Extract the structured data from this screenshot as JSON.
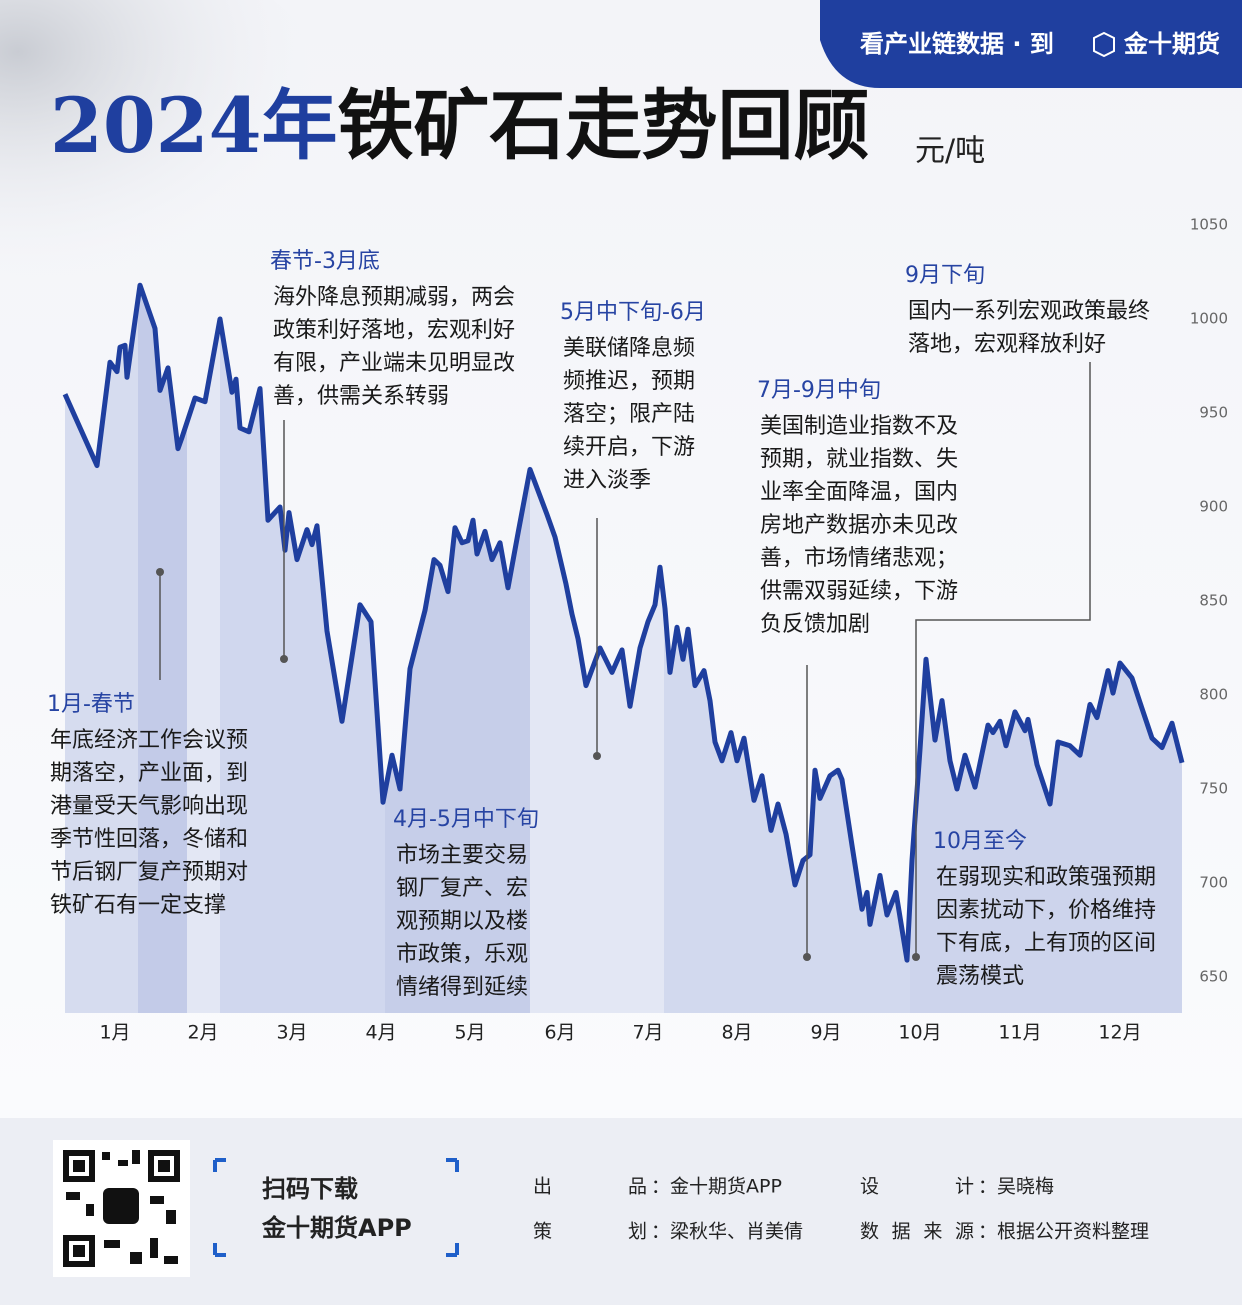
{
  "header": {
    "banner_text": "看产业链数据 · 到",
    "banner_brand": "金十期货",
    "title_year": "2024年",
    "title_rest": "铁矿石走势回顾",
    "unit": "元/吨"
  },
  "chart_data": {
    "type": "line",
    "xlim": [
      0,
      1120
    ],
    "xticks": [
      {
        "value": 50,
        "label": "1月"
      },
      {
        "value": 138,
        "label": "2月"
      },
      {
        "value": 227,
        "label": "3月"
      },
      {
        "value": 316,
        "label": "4月"
      },
      {
        "value": 405,
        "label": "5月"
      },
      {
        "value": 495,
        "label": "6月"
      },
      {
        "value": 583,
        "label": "7月"
      },
      {
        "value": 672,
        "label": "8月"
      },
      {
        "value": 761,
        "label": "9月"
      },
      {
        "value": 855,
        "label": "10月"
      },
      {
        "value": 955,
        "label": "11月"
      },
      {
        "value": 1055,
        "label": "12月"
      }
    ],
    "ylim": [
      650,
      1050
    ],
    "yticks": [
      650,
      700,
      750,
      800,
      850,
      900,
      950,
      1000,
      1050
    ],
    "series": [
      {
        "color": "#1f3f9f",
        "x": [
          0,
          32,
          45,
          52,
          55,
          60,
          62,
          75,
          90,
          95,
          103,
          113,
          117,
          130,
          140,
          155,
          167,
          171,
          175,
          184,
          195,
          203,
          215,
          220,
          224,
          232,
          242,
          247,
          252,
          262,
          277,
          295,
          306,
          318,
          327,
          335,
          345,
          360,
          369,
          375,
          383,
          390,
          397,
          403,
          408,
          412,
          420,
          427,
          435,
          443,
          453,
          465,
          482,
          490,
          501,
          507,
          513,
          521,
          535,
          547,
          557,
          565,
          575,
          583,
          590,
          595,
          600,
          605,
          612,
          618,
          623,
          630,
          639,
          645,
          650,
          657,
          666,
          672,
          679,
          689,
          697,
          706,
          713,
          721,
          730,
          738,
          745,
          750,
          755,
          765,
          773,
          777,
          787,
          797,
          802,
          805,
          815,
          822,
          831,
          842,
          847,
          855,
          861,
          870,
          877,
          885,
          892,
          900,
          910,
          923,
          928,
          935,
          941,
          950,
          960,
          963,
          972,
          985,
          993,
          1005,
          1015,
          1025,
          1032,
          1043,
          1048,
          1055,
          1067,
          1075,
          1087,
          1097,
          1107,
          1117
        ],
        "values": [
          960,
          922,
          977,
          972,
          985,
          986,
          969,
          1018,
          995,
          962,
          974,
          931,
          937,
          958,
          956,
          1000,
          961,
          968,
          942,
          940,
          963,
          893,
          900,
          877,
          897,
          872,
          888,
          880,
          890,
          834,
          786,
          848,
          839,
          743,
          768,
          750,
          814,
          845,
          872,
          869,
          855,
          889,
          881,
          882,
          893,
          875,
          887,
          872,
          881,
          857,
          886,
          920,
          896,
          884,
          859,
          843,
          830,
          805,
          825,
          812,
          824,
          794,
          825,
          839,
          848,
          868,
          846,
          812,
          836,
          819,
          835,
          805,
          813,
          797,
          775,
          765,
          780,
          765,
          777,
          744,
          757,
          728,
          742,
          726,
          699,
          712,
          715,
          760,
          745,
          757,
          760,
          755,
          720,
          686,
          695,
          678,
          704,
          683,
          695,
          659,
          712,
          771,
          819,
          776,
          797,
          765,
          750,
          768,
          751,
          784,
          780,
          786,
          773,
          791,
          781,
          787,
          763,
          742,
          775,
          773,
          768,
          795,
          788,
          813,
          801,
          817,
          809,
          796,
          777,
          772,
          785,
          764
        ]
      }
    ],
    "annotations": [
      {
        "title": "1月-春节",
        "lines": [
          "年底经济工作会议预",
          "期落空，产业面，到",
          "港量受天气影响出现",
          "季节性回落，冬储和",
          "节后钢厂复产预期对",
          "铁矿石有一定支撑"
        ]
      },
      {
        "title": "春节-3月底",
        "lines": [
          "海外降息预期减弱，两会",
          "政策利好落地，宏观利好",
          "有限，产业端未见明显改",
          "善，供需关系转弱"
        ]
      },
      {
        "title": "5月中下旬-6月",
        "lines": [
          "美联储降息频",
          "频推迟，预期",
          "落空；限产陆",
          "续开启，下游",
          "进入淡季"
        ]
      },
      {
        "title": "4月-5月中下旬",
        "lines": [
          "市场主要交易",
          "钢厂复产、宏",
          "观预期以及楼",
          "市政策，乐观",
          "情绪得到延续"
        ]
      },
      {
        "title": "7月-9月中旬",
        "lines": [
          "美国制造业指数不及",
          "预期，就业指数、失",
          "业率全面降温，国内",
          "房地产数据亦未见改",
          "善，市场情绪悲观；",
          "供需双弱延续，下游",
          "负反馈加剧"
        ]
      },
      {
        "title": "9月下旬",
        "lines": [
          "国内一系列宏观政策最终",
          "落地，宏观释放利好"
        ]
      },
      {
        "title": "10月至今",
        "lines": [
          "在弱现实和政策强预期",
          "因素扰动下，价格维持",
          "下有底，上有顶的区间",
          "震荡模式"
        ]
      }
    ]
  },
  "footer": {
    "scan": "扫码下载",
    "app": "金十期货APP",
    "credits": [
      {
        "label": "出品",
        "value": "：金十期货APP"
      },
      {
        "label": "设计",
        "value": "：吴晓梅"
      },
      {
        "label": "策划",
        "value": "：梁秋华、肖美倩"
      },
      {
        "label": "数据来源",
        "value": "：根据公开资料整理"
      }
    ]
  }
}
